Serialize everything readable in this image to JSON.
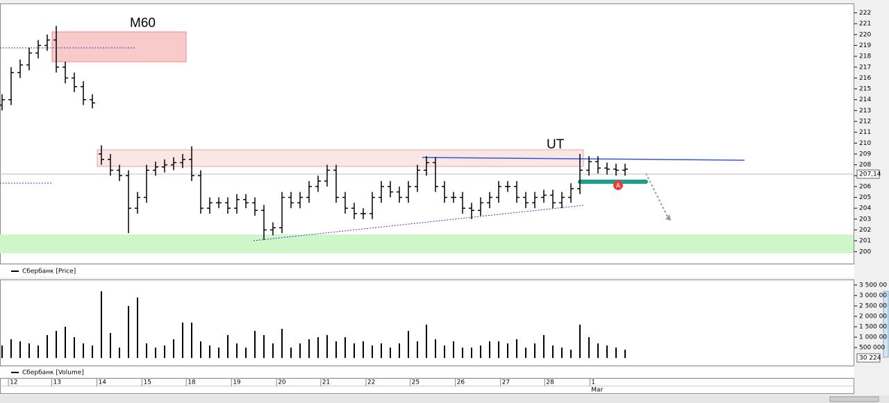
{
  "chart_data": [
    {
      "type": "ohlc",
      "series": [
        {
          "name": "Сбербанк [Price]",
          "color": "#000000",
          "open": [
            213.5,
            214,
            216.5,
            217.2,
            218.3,
            219,
            219.5,
            217,
            216,
            215.2,
            214,
            209,
            208.5,
            207.5,
            207,
            204,
            205,
            207.5,
            207.8,
            208,
            208.2,
            208.5,
            207,
            204,
            204.5,
            204.5,
            204,
            204.8,
            204.5,
            203.8,
            202,
            202.2,
            205,
            204.5,
            205,
            206,
            206.5,
            207.5,
            205,
            204,
            203.5,
            203.5,
            205,
            206,
            205.5,
            205,
            206,
            207.5,
            208.2,
            206,
            205,
            205,
            204,
            203.8,
            204.5,
            205,
            206,
            206,
            205,
            204.5,
            205,
            205.2,
            204.5,
            205,
            205.8,
            207.5,
            208.3,
            207.7,
            207.6,
            207.5
          ],
          "high": [
            214.5,
            217,
            217.7,
            218.8,
            219.5,
            220,
            220.8,
            217.5,
            216.5,
            215.7,
            214.5,
            209.8,
            209,
            208,
            207.5,
            205.5,
            208,
            208.3,
            208.5,
            208.7,
            209,
            209.7,
            207.5,
            205,
            205,
            205,
            205.3,
            205.3,
            205,
            204.3,
            202.7,
            205.5,
            205.5,
            205.5,
            206.5,
            207,
            208,
            208,
            205.5,
            204.5,
            204,
            205.5,
            206.5,
            206.5,
            206,
            206.5,
            208,
            208.8,
            208.7,
            206.5,
            205.5,
            205.5,
            204.5,
            205,
            205.5,
            206.5,
            206.5,
            206.5,
            205.5,
            205.5,
            205.7,
            205.7,
            205.5,
            206.3,
            209,
            208.8,
            208.8,
            208.2,
            208.1,
            208.1
          ],
          "low": [
            213,
            213.5,
            216,
            216.7,
            217.8,
            218.5,
            216.5,
            215.5,
            214.7,
            213.5,
            213.2,
            208,
            207,
            206.5,
            201.7,
            203.5,
            204.5,
            207,
            207.3,
            207.5,
            207.7,
            206.5,
            203.5,
            203.5,
            204,
            203.5,
            203.5,
            204,
            203.3,
            201.1,
            201.5,
            201.7,
            204,
            204,
            204.5,
            205.5,
            206,
            204.5,
            203.5,
            203,
            203,
            203,
            204.5,
            205,
            204.5,
            204.5,
            205.5,
            207,
            205.5,
            204.5,
            204.5,
            203.5,
            203,
            203.3,
            204,
            204.5,
            205.5,
            204.5,
            204,
            204,
            204.5,
            204,
            204,
            204.5,
            205.3,
            207,
            207.2,
            207.1,
            207,
            207
          ],
          "close": [
            214,
            216.5,
            217.2,
            218.3,
            219,
            219.5,
            217,
            216,
            215.2,
            214,
            213.7,
            208.5,
            207.5,
            207,
            204,
            205,
            207.5,
            207.8,
            208,
            208.2,
            208.5,
            207,
            204,
            204.5,
            204.5,
            204,
            204.8,
            204.5,
            203.8,
            202,
            202.2,
            205,
            204.5,
            205,
            206,
            206.5,
            207.5,
            205,
            204,
            203.5,
            203.5,
            205,
            206,
            205.5,
            205,
            206,
            207.5,
            208.2,
            206,
            205,
            205,
            204,
            203.8,
            204.5,
            205,
            206,
            206,
            205,
            204.5,
            205,
            205.2,
            204.5,
            205,
            205.8,
            207.5,
            208.3,
            207.7,
            207.6,
            207.5,
            207.6
          ]
        }
      ],
      "ylim": [
        198.9,
        222.8
      ],
      "yticks": [
        200,
        201,
        202,
        203,
        204,
        205,
        206,
        207,
        208,
        209,
        210,
        211,
        212,
        213,
        214,
        215,
        216,
        217,
        218,
        219,
        220,
        221,
        222
      ],
      "xlim": [
        -0.23,
        94.23
      ],
      "xticks": [
        {
          "value": 0.7,
          "label": "12"
        },
        {
          "value": 5.5,
          "label": "13"
        },
        {
          "value": 10.5,
          "label": "14"
        },
        {
          "value": 15.5,
          "label": "15"
        },
        {
          "value": 20.4,
          "label": "18"
        },
        {
          "value": 25.4,
          "label": "19"
        },
        {
          "value": 30.4,
          "label": "20"
        },
        {
          "value": 35.3,
          "label": "21"
        },
        {
          "value": 40.3,
          "label": "22"
        },
        {
          "value": 45.2,
          "label": "25"
        },
        {
          "value": 50.2,
          "label": "26"
        },
        {
          "value": 55.2,
          "label": "27"
        },
        {
          "value": 60.1,
          "label": "28"
        },
        {
          "value": 65.1,
          "label": "1"
        }
      ],
      "month_label": "Mar",
      "last_price": {
        "value": 207.14,
        "label": "207,14"
      },
      "annotations": [
        "M60",
        "UT",
        "A"
      ]
    },
    {
      "type": "bar",
      "series": [
        {
          "name": "Сбербанк [Volume]",
          "color": "#000000",
          "values": [
            600000,
            900000,
            800000,
            700000,
            600000,
            1100000,
            1300000,
            1500000,
            1000000,
            700000,
            600000,
            3200000,
            1200000,
            500000,
            2500000,
            2900000,
            700000,
            500000,
            600000,
            900000,
            1700000,
            1700000,
            800000,
            600000,
            500000,
            1100000,
            700000,
            500000,
            1300000,
            1100000,
            700000,
            1400000,
            500000,
            700000,
            900000,
            1000000,
            1100000,
            800000,
            1000000,
            700000,
            800000,
            600000,
            700000,
            500000,
            700000,
            1300000,
            800000,
            1600000,
            900000,
            600000,
            800000,
            500000,
            500000,
            600000,
            800000,
            800000,
            700000,
            900000,
            500000,
            700000,
            1100000,
            600000,
            500000,
            400000,
            1600000,
            1000000,
            700000,
            600000,
            500000,
            400000
          ]
        }
      ],
      "ylim": [
        -360000,
        3730000
      ],
      "yticks": [
        {
          "value": 500000,
          "label": "500 000"
        },
        {
          "value": 1000000,
          "label": "1 000 00"
        },
        {
          "value": 1500000,
          "label": "1 500 00"
        },
        {
          "value": 2000000,
          "label": "2 000 00"
        },
        {
          "value": 2500000,
          "label": "2 500 00"
        },
        {
          "value": 3000000,
          "label": "3 000 00"
        },
        {
          "value": 3500000,
          "label": "3 500 00"
        }
      ],
      "xlim": [
        -0.23,
        94.23
      ],
      "last_label": "30 224"
    }
  ]
}
